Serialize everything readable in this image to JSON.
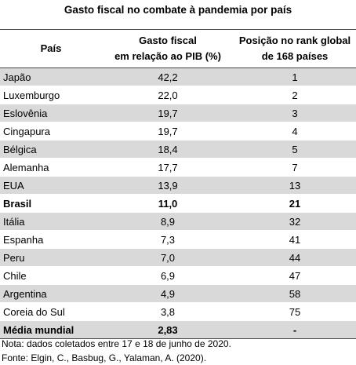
{
  "header": {
    "title": "Gasto fiscal no combate à pandemia por país"
  },
  "table": {
    "columns": [
      "País",
      [
        "Gasto fiscal",
        "em relação ao PIB (%)"
      ],
      [
        "Posição no rank global",
        "de 168 países"
      ]
    ],
    "rows": [
      [
        "Japão",
        "42,2",
        "1"
      ],
      [
        "Luxemburgo",
        "22,0",
        "2"
      ],
      [
        "Eslovênia",
        "19,7",
        "3"
      ],
      [
        "Cingapura",
        "19,7",
        "4"
      ],
      [
        "Bélgica",
        "18,4",
        "5"
      ],
      [
        "Alemanha",
        "17,7",
        "7"
      ],
      [
        "EUA",
        "13,9",
        "13"
      ],
      [
        "Brasil",
        "11,0",
        "21"
      ],
      [
        "Itália",
        "8,9",
        "32"
      ],
      [
        "Espanha",
        "7,3",
        "41"
      ],
      [
        "Peru",
        "7,0",
        "44"
      ],
      [
        "Chile",
        "6,9",
        "47"
      ],
      [
        "Argentina",
        "4,9",
        "58"
      ],
      [
        "Coreia do Sul",
        "3,8",
        "75"
      ]
    ],
    "average": [
      "Média mundial",
      "2,83",
      "-"
    ]
  },
  "footer": {
    "note": "Nota: dados coletados entre 17 e 18 de junho de 2020.",
    "source": "Fonte: Elgin, C., Basbug, G., Yalaman, A. (2020)."
  }
}
